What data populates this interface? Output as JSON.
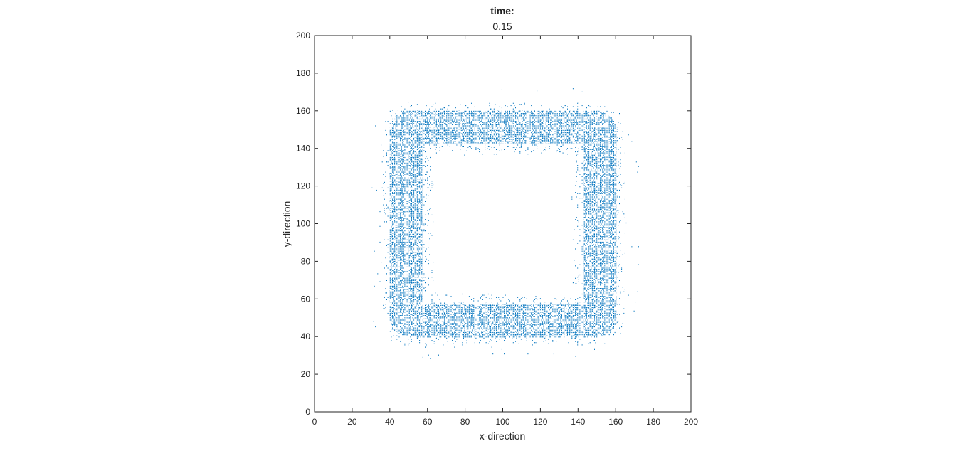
{
  "chart_data": {
    "type": "scatter",
    "title": "time:",
    "subtitle": "0.15",
    "xlabel": "x-direction",
    "ylabel": "y-direction",
    "xlim": [
      0,
      200
    ],
    "ylim": [
      0,
      200
    ],
    "xticks": [
      0,
      20,
      40,
      60,
      80,
      100,
      120,
      140,
      160,
      180,
      200
    ],
    "yticks": [
      0,
      20,
      40,
      60,
      80,
      100,
      120,
      140,
      160,
      180,
      200
    ],
    "grid": false,
    "marker_color": "#0072BD",
    "description_shape": "square ring",
    "ring": {
      "outer_min": 40,
      "outer_max": 160,
      "inner_min": 58,
      "inner_max": 142,
      "scatter_min": 28,
      "scatter_max": 172
    }
  }
}
